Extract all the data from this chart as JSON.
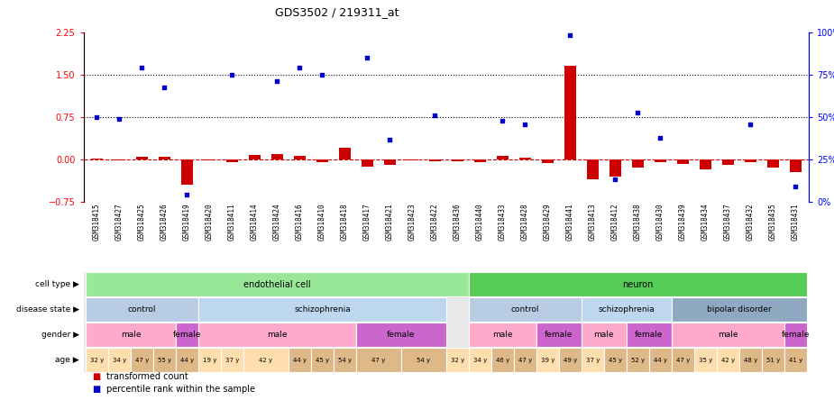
{
  "title": "GDS3502 / 219311_at",
  "samples": [
    "GSM318415",
    "GSM318427",
    "GSM318425",
    "GSM318426",
    "GSM318419",
    "GSM318420",
    "GSM318411",
    "GSM318414",
    "GSM318424",
    "GSM318416",
    "GSM318410",
    "GSM318418",
    "GSM318417",
    "GSM318421",
    "GSM318423",
    "GSM318422",
    "GSM318436",
    "GSM318440",
    "GSM318433",
    "GSM318428",
    "GSM318429",
    "GSM318441",
    "GSM318413",
    "GSM318412",
    "GSM318438",
    "GSM318430",
    "GSM318439",
    "GSM318434",
    "GSM318437",
    "GSM318432",
    "GSM318435",
    "GSM318431"
  ],
  "red_values": [
    0.02,
    -0.02,
    0.05,
    0.05,
    -0.45,
    -0.02,
    -0.05,
    0.08,
    0.1,
    0.06,
    -0.05,
    0.2,
    -0.12,
    -0.1,
    -0.02,
    -0.03,
    -0.03,
    -0.04,
    0.06,
    0.04,
    -0.06,
    1.65,
    -0.35,
    -0.3,
    -0.15,
    -0.05,
    -0.08,
    -0.18,
    -0.1,
    -0.05,
    -0.15,
    -0.22
  ],
  "blue_values": [
    0.75,
    0.72,
    1.62,
    1.27,
    -0.62,
    null,
    1.5,
    null,
    1.38,
    1.62,
    1.5,
    null,
    1.8,
    0.35,
    null,
    0.78,
    null,
    null,
    0.68,
    0.62,
    null,
    2.2,
    null,
    -0.35,
    0.82,
    0.38,
    null,
    null,
    null,
    0.62,
    null,
    -0.48
  ],
  "cell_type_groups": [
    {
      "label": "endothelial cell",
      "start": 0,
      "end": 16,
      "color": "#98E898"
    },
    {
      "label": "neuron",
      "start": 17,
      "end": 31,
      "color": "#55CC55"
    }
  ],
  "disease_state_groups": [
    {
      "label": "control",
      "start": 0,
      "end": 4,
      "color": "#B8CCE4"
    },
    {
      "label": "schizophrenia",
      "start": 5,
      "end": 15,
      "color": "#BDD7EE"
    },
    {
      "label": "control",
      "start": 17,
      "end": 21,
      "color": "#B8CCE4"
    },
    {
      "label": "schizophrenia",
      "start": 22,
      "end": 25,
      "color": "#BDD7EE"
    },
    {
      "label": "bipolar disorder",
      "start": 26,
      "end": 31,
      "color": "#8EA9C1"
    }
  ],
  "gender_groups": [
    {
      "label": "male",
      "start": 0,
      "end": 3,
      "color": "#FFAACC"
    },
    {
      "label": "female",
      "start": 4,
      "end": 4,
      "color": "#CC66CC"
    },
    {
      "label": "male",
      "start": 5,
      "end": 11,
      "color": "#FFAACC"
    },
    {
      "label": "female",
      "start": 12,
      "end": 15,
      "color": "#CC66CC"
    },
    {
      "label": "male",
      "start": 17,
      "end": 19,
      "color": "#FFAACC"
    },
    {
      "label": "female",
      "start": 20,
      "end": 21,
      "color": "#CC66CC"
    },
    {
      "label": "male",
      "start": 22,
      "end": 23,
      "color": "#FFAACC"
    },
    {
      "label": "female",
      "start": 24,
      "end": 25,
      "color": "#CC66CC"
    },
    {
      "label": "male",
      "start": 26,
      "end": 30,
      "color": "#FFAACC"
    },
    {
      "label": "female",
      "start": 31,
      "end": 31,
      "color": "#CC66CC"
    }
  ],
  "age_data": [
    {
      "label": "32 y",
      "start": 0,
      "end": 0,
      "color": "#FFDEAD"
    },
    {
      "label": "34 y",
      "start": 1,
      "end": 1,
      "color": "#FFDEAD"
    },
    {
      "label": "47 y",
      "start": 2,
      "end": 2,
      "color": "#DEB887"
    },
    {
      "label": "55 y",
      "start": 3,
      "end": 3,
      "color": "#DEB887"
    },
    {
      "label": "44 y",
      "start": 4,
      "end": 4,
      "color": "#DEB887"
    },
    {
      "label": "19 y",
      "start": 5,
      "end": 5,
      "color": "#FFDEAD"
    },
    {
      "label": "37 y",
      "start": 6,
      "end": 6,
      "color": "#FFDEAD"
    },
    {
      "label": "42 y",
      "start": 7,
      "end": 8,
      "color": "#FFDEAD"
    },
    {
      "label": "44 y",
      "start": 9,
      "end": 9,
      "color": "#DEB887"
    },
    {
      "label": "45 y",
      "start": 10,
      "end": 10,
      "color": "#DEB887"
    },
    {
      "label": "54 y",
      "start": 11,
      "end": 11,
      "color": "#DEB887"
    },
    {
      "label": "47 y",
      "start": 12,
      "end": 13,
      "color": "#DEB887"
    },
    {
      "label": "54 y",
      "start": 14,
      "end": 15,
      "color": "#DEB887"
    },
    {
      "label": "32 y",
      "start": 16,
      "end": 16,
      "color": "#FFDEAD"
    },
    {
      "label": "34 y",
      "start": 17,
      "end": 17,
      "color": "#FFDEAD"
    },
    {
      "label": "46 y",
      "start": 18,
      "end": 18,
      "color": "#DEB887"
    },
    {
      "label": "47 y",
      "start": 19,
      "end": 19,
      "color": "#DEB887"
    },
    {
      "label": "39 y",
      "start": 20,
      "end": 20,
      "color": "#FFDEAD"
    },
    {
      "label": "49 y",
      "start": 21,
      "end": 21,
      "color": "#DEB887"
    },
    {
      "label": "37 y",
      "start": 22,
      "end": 22,
      "color": "#FFDEAD"
    },
    {
      "label": "45 y",
      "start": 23,
      "end": 23,
      "color": "#DEB887"
    },
    {
      "label": "52 y",
      "start": 24,
      "end": 24,
      "color": "#DEB887"
    },
    {
      "label": "44 y",
      "start": 25,
      "end": 25,
      "color": "#DEB887"
    },
    {
      "label": "47 y",
      "start": 26,
      "end": 26,
      "color": "#DEB887"
    },
    {
      "label": "35 y",
      "start": 27,
      "end": 27,
      "color": "#FFDEAD"
    },
    {
      "label": "42 y",
      "start": 28,
      "end": 28,
      "color": "#FFDEAD"
    },
    {
      "label": "48 y",
      "start": 29,
      "end": 29,
      "color": "#DEB887"
    },
    {
      "label": "51 y",
      "start": 30,
      "end": 30,
      "color": "#DEB887"
    },
    {
      "label": "41 y",
      "start": 31,
      "end": 31,
      "color": "#DEB887"
    }
  ],
  "ylim_left": [
    -0.75,
    2.25
  ],
  "ylim_right": [
    0,
    100
  ],
  "yticks_left": [
    -0.75,
    0,
    0.75,
    1.5,
    2.25
  ],
  "yticks_right": [
    0,
    25,
    50,
    75,
    100
  ],
  "hlines": [
    0.75,
    1.5
  ],
  "bar_width": 0.5,
  "row_labels": [
    "cell type",
    "disease state",
    "gender",
    "age"
  ],
  "legend_items": [
    {
      "label": "transformed count",
      "color": "#CC0000"
    },
    {
      "label": "percentile rank within the sample",
      "color": "#0000CC"
    }
  ]
}
